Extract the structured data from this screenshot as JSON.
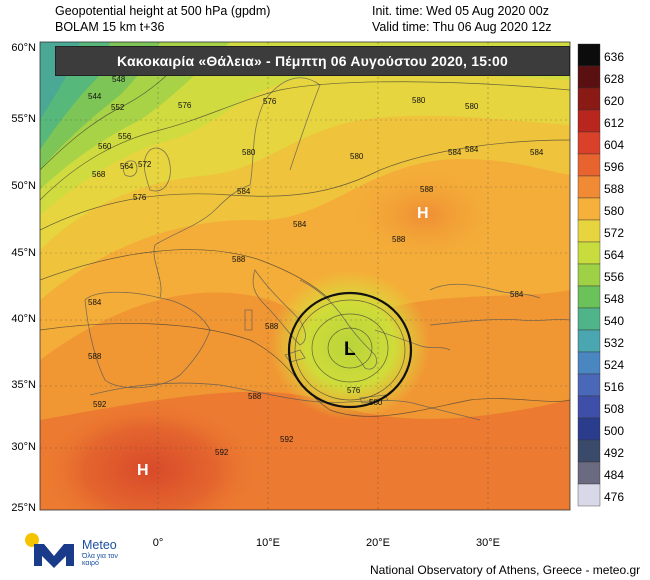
{
  "header": {
    "title_line1": "Geopotential height at 500 hPa (gpdm)",
    "title_line2": "BOLAM 15 km t+36",
    "init_time": "Init. time: Wed 05 Aug 2020 00z",
    "valid_time": "Valid time: Thu 06 Aug 2020 12z"
  },
  "banner": "Κακοκαιρία «Θάλεια» - Πέμπτη 06 Αυγούστου 2020, 15:00",
  "map": {
    "lat_labels": [
      "60°N",
      "55°N",
      "50°N",
      "45°N",
      "40°N",
      "35°N",
      "30°N",
      "25°N"
    ],
    "lon_labels": [
      "0°",
      "10°E",
      "20°E",
      "30°E"
    ],
    "pressure_centers": [
      {
        "symbol": "H",
        "where": "Ukraine",
        "color": "#ffffff"
      },
      {
        "symbol": "H",
        "where": "North Africa",
        "color": "#ffffff"
      },
      {
        "symbol": "L",
        "where": "Ionian Sea",
        "color": "#000000"
      }
    ],
    "contour_labels": [
      "548",
      "544",
      "552",
      "556",
      "560",
      "564",
      "568",
      "572",
      "576",
      "576",
      "576",
      "580",
      "580",
      "580",
      "580",
      "584",
      "584",
      "584",
      "584",
      "584",
      "584",
      "584",
      "588",
      "588",
      "588",
      "588",
      "588",
      "588",
      "592",
      "592",
      "592",
      "580",
      "576"
    ]
  },
  "colorbar": {
    "levels": [
      "636",
      "628",
      "620",
      "612",
      "604",
      "596",
      "588",
      "580",
      "572",
      "564",
      "556",
      "548",
      "540",
      "532",
      "524",
      "516",
      "508",
      "500",
      "492",
      "484",
      "476"
    ],
    "colors": [
      "#0c0c0c",
      "#5a1010",
      "#8a1a14",
      "#b8261e",
      "#d9412a",
      "#e8642e",
      "#f08a34",
      "#f5b13c",
      "#e8d43e",
      "#c8dc3e",
      "#9fd146",
      "#6cc25a",
      "#4fb489",
      "#4aa6b0",
      "#4a86c0",
      "#4a68b8",
      "#3d4fa8",
      "#2a3c8c",
      "#3a4a6a",
      "#6a6a80",
      "#d8d8e8"
    ]
  },
  "logo": {
    "name": "Meteo",
    "tagline": "Όλα για τον καιρό"
  },
  "credit": "National Observatory of Athens, Greece - meteo.gr"
}
